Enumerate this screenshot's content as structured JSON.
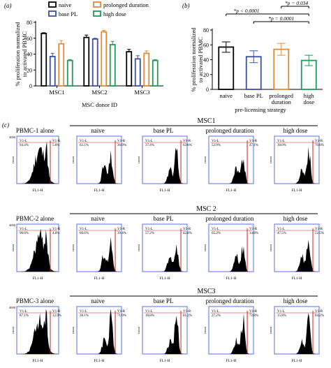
{
  "chart_data": [
    {
      "panel": "(a)",
      "type": "bar",
      "categories": [
        "MSC1",
        "MSC2",
        "MSC3"
      ],
      "xlabel": "MSC donor ID",
      "ylabel": "% proliferation normalized to activated PBMC",
      "ylim": [
        0,
        80
      ],
      "yticks": [
        0,
        20,
        40,
        60,
        80
      ],
      "series": [
        {
          "name": "naive",
          "values": [
            66,
            61,
            43
          ],
          "err": [
            1,
            3,
            3
          ]
        },
        {
          "name": "base PL",
          "values": [
            37,
            59,
            34
          ],
          "err": [
            4,
            1,
            4
          ]
        },
        {
          "name": "prolonged duration",
          "values": [
            53,
            68,
            41
          ],
          "err": [
            4,
            2,
            3
          ]
        },
        {
          "name": "high dose",
          "values": [
            32,
            52,
            32
          ],
          "err": [
            1,
            4,
            1
          ]
        }
      ]
    },
    {
      "panel": "(b)",
      "type": "bar",
      "categories": [
        "naive",
        "base PL",
        "prolonged duration",
        "high dose"
      ],
      "xlabel": "pre-licensing strategy",
      "ylabel": "% proliferation normalized to activated PBMC",
      "ylim": [
        0,
        80
      ],
      "yticks": [
        0,
        20,
        40,
        60,
        80
      ],
      "values": [
        57,
        44,
        54,
        39
      ],
      "err": [
        7,
        8,
        8,
        7
      ],
      "annotations": [
        "*p < 0.0001",
        "*p = 0.034",
        "*p = 0.0001"
      ]
    },
    {
      "panel": "(c)",
      "type": "histogram-grid",
      "xaxis_label": "FL1-H",
      "yaxis_label": "count",
      "gate_left": "V1-L",
      "gate_right": "V1-R",
      "rows": [
        {
          "group": "MSC1",
          "alone": "PBMC-1 alone",
          "alone_l": "94.4%",
          "alone_r": "5.6%",
          "ymax": "4000",
          "cells": [
            {
              "label": "naive",
              "l": "63.1%",
              "r": "36.9%"
            },
            {
              "label": "base PL",
              "l": "37.4%",
              "r": "62.6%"
            },
            {
              "label": "prolonged duration",
              "l": "52.9%",
              "r": "47.1%"
            },
            {
              "label": "high dose",
              "l": "30.0%",
              "r": "70.0%"
            }
          ]
        },
        {
          "group": "MSC 2",
          "alone": "PBMC-2 alone",
          "alone_l": "96.0%",
          "alone_r": "4.0%",
          "ymax": "4000",
          "cells": [
            {
              "label": "naive",
              "l": "60.6%",
              "r": "39.4%"
            },
            {
              "label": "base PL",
              "l": "57.2%",
              "r": "42.8%"
            },
            {
              "label": "prolonged duration",
              "l": "65.2%",
              "r": "34.8%"
            },
            {
              "label": "high dose",
              "l": "47.5%",
              "r": "52.5%"
            }
          ]
        },
        {
          "group": "MSC3",
          "alone": "PBMC-3 alone",
          "alone_l": "87.1%",
          "alone_r": "12.9%",
          "ymax": "4000",
          "cells": [
            {
              "label": "naive",
              "l": "28.1%",
              "r": "71.9%"
            },
            {
              "label": "base PL",
              "l": "18.8%",
              "r": "81.2%"
            },
            {
              "label": "prolonged duration",
              "l": "27.2%",
              "r": "72.8%"
            },
            {
              "label": "high dose",
              "l": "15.8%",
              "r": "84.2%"
            }
          ]
        }
      ]
    }
  ],
  "colors": {
    "naive": "#000000",
    "base PL": "#3a50a8",
    "prolonged duration": "#e08a3a",
    "high dose": "#1f9a58",
    "hist_frame": "#5a6ee0",
    "gate_text": "#d02020",
    "gate_line": "#d02020"
  }
}
